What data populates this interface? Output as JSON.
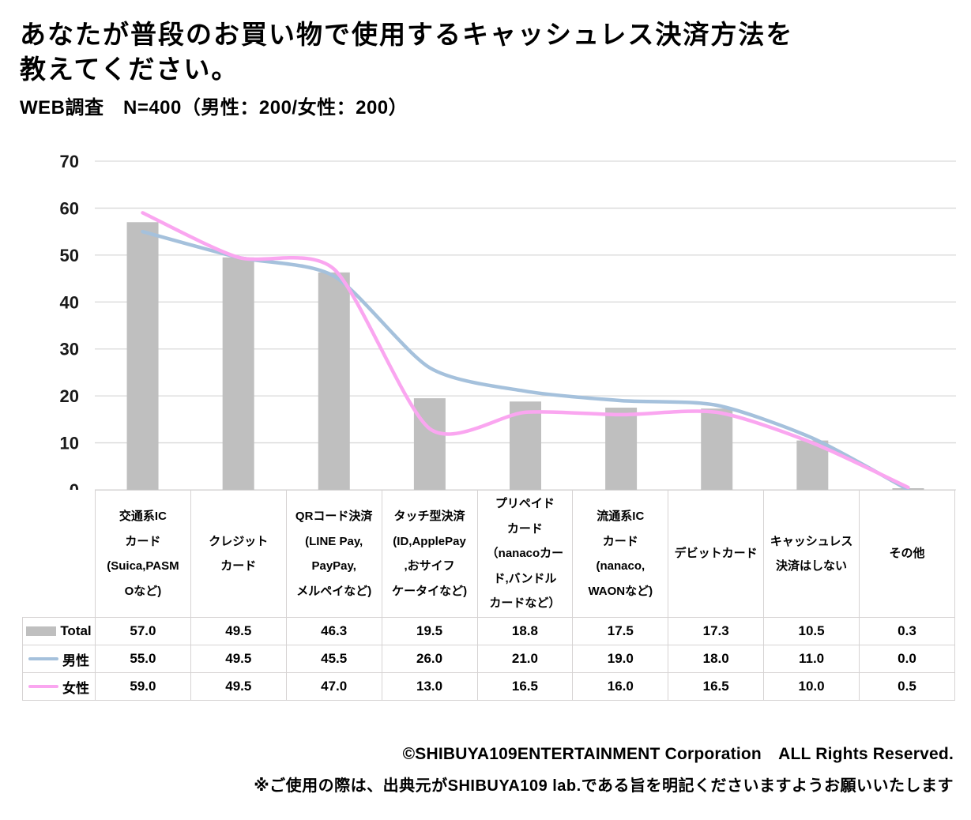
{
  "header": {
    "title_line1": "あなたが普段のお買い物で使用するキャッシュレス決済方法を",
    "title_line2": "教えてください。",
    "subtitle": "WEB調査　N=400（男性：200/女性：200）"
  },
  "footer": {
    "copyright": "©SHIBUYA109ENTERTAINMENT Corporation　ALL Rights Reserved.",
    "notice": "※ご使用の際は、出典元がSHIBUYA109 lab.である旨を明記くださいますようお願いいたします"
  },
  "chart_data": {
    "type": "bar",
    "title": "あなたが普段のお買い物で使用するキャッシュレス決済方法を教えてください。",
    "subtitle": "WEB調査 N=400（男性：200/女性：200）",
    "categories": [
      "交通系IC\nカード\n(Suica,PASM\nOなど)",
      "クレジット\nカード",
      "QRコード決済\n(LINE Pay,\nPayPay,\nメルペイなど)",
      "タッチ型決済\n(ID,ApplePay\n,おサイフ\nケータイなど)",
      "プリペイド\nカード\n（nanacoカー\nド,バンドル\nカードなど）",
      "流通系IC\nカード\n(nanaco,\nWAONなど)",
      "デビットカード",
      "キャッシュレス\n決済はしない",
      "その他"
    ],
    "series": [
      {
        "name": "Total",
        "render": "bar",
        "color": "#BFBFBF",
        "swatch": "rect",
        "values": [
          57.0,
          49.5,
          46.3,
          19.5,
          18.8,
          17.5,
          17.3,
          10.5,
          0.3
        ]
      },
      {
        "name": "男性",
        "render": "line",
        "color": "#A5C1DC",
        "swatch": "line",
        "values": [
          55.0,
          49.5,
          45.5,
          26.0,
          21.0,
          19.0,
          18.0,
          11.0,
          0.0
        ]
      },
      {
        "name": "女性",
        "render": "line",
        "color": "#FAA6F0",
        "swatch": "line",
        "values": [
          59.0,
          49.5,
          47.0,
          13.0,
          16.5,
          16.0,
          16.5,
          10.0,
          0.5
        ]
      }
    ],
    "ylim": [
      0,
      70
    ],
    "yticks": [
      0,
      10,
      20,
      30,
      40,
      50,
      60,
      70
    ],
    "xlabel": "",
    "ylabel": "",
    "grid": "horizontal",
    "grid_color": "#D9D9D9",
    "legend_position": "table-left",
    "value_format": "one-decimal"
  }
}
